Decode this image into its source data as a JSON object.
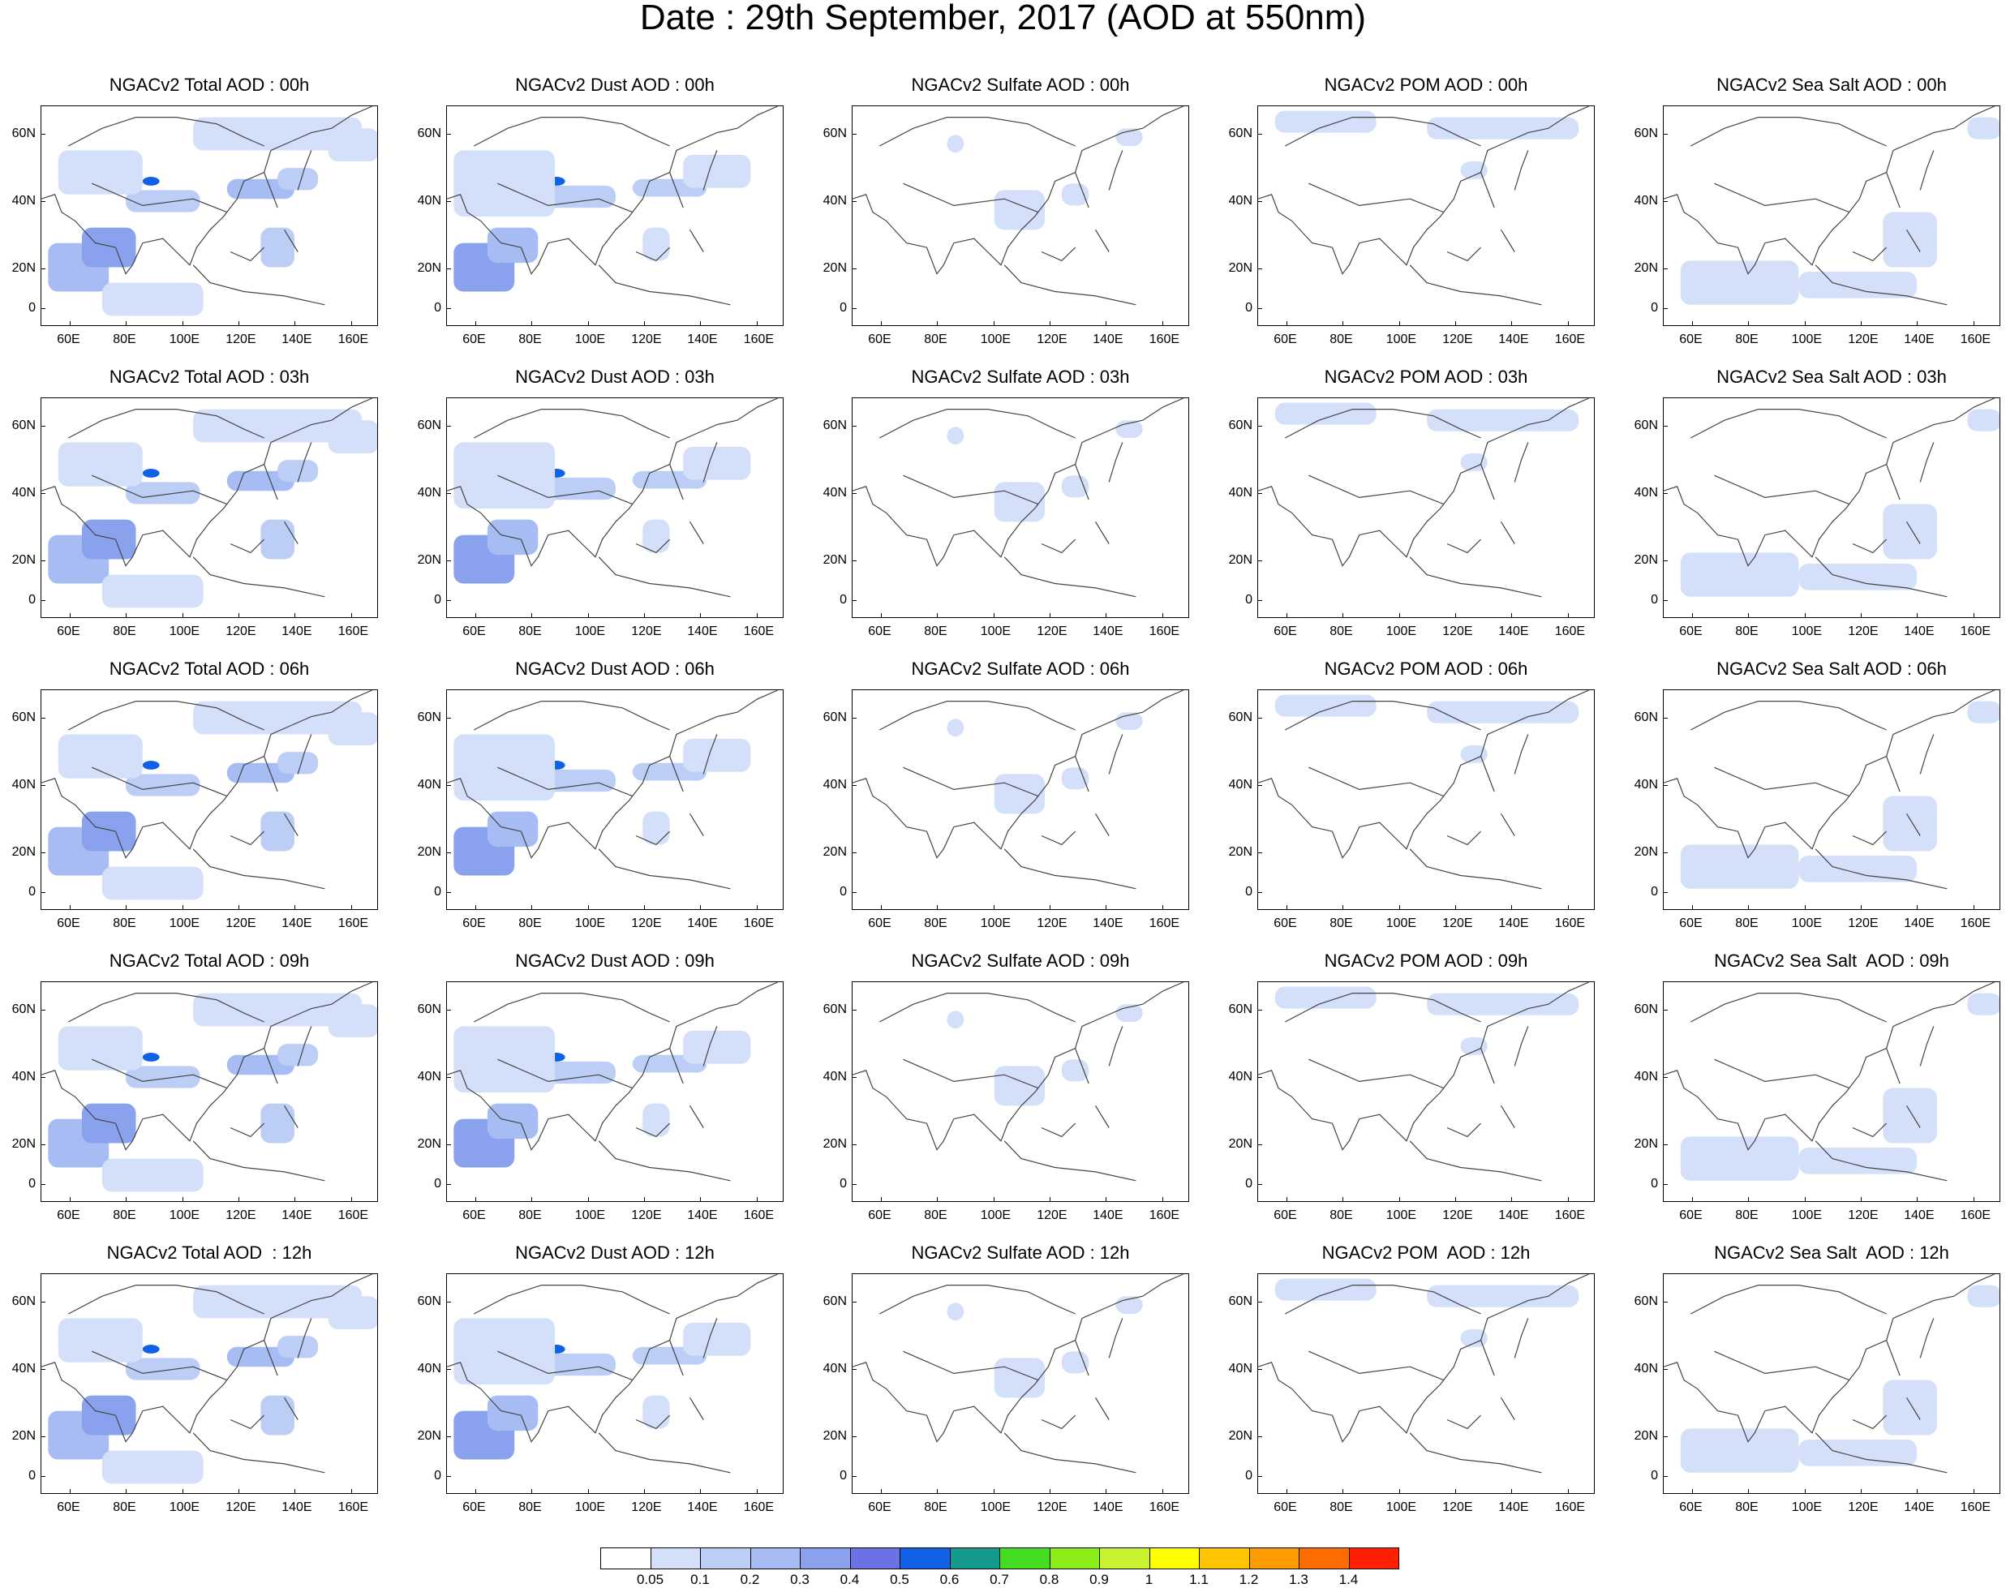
{
  "title": "Date : 29th September, 2017 (AOD at 550nm)",
  "panel_titles": [
    [
      "NGACv2 Total AOD : 00h",
      "NGACv2 Dust AOD : 00h",
      "NGACv2 Sulfate AOD : 00h",
      "NGACv2 POM AOD : 00h",
      "NGACv2 Sea Salt AOD : 00h"
    ],
    [
      "NGACv2 Total AOD : 03h",
      "NGACv2 Dust AOD : 03h",
      "NGACv2 Sulfate AOD : 03h",
      "NGACv2 POM AOD : 03h",
      "NGACv2 Sea Salt AOD : 03h"
    ],
    [
      "NGACv2 Total AOD : 06h",
      "NGACv2 Dust AOD : 06h",
      "NGACv2 Sulfate AOD : 06h",
      "NGACv2 POM AOD : 06h",
      "NGACv2 Sea Salt AOD : 06h"
    ],
    [
      "NGACv2 Total AOD : 09h",
      "NGACv2 Dust AOD : 09h",
      "NGACv2 Sulfate AOD : 09h",
      "NGACv2 POM AOD : 09h",
      "NGACv2 Sea Salt  AOD : 09h"
    ],
    [
      "NGACv2 Total AOD  : 12h",
      "NGACv2 Dust AOD : 12h",
      "NGACv2 Sulfate AOD : 12h",
      "NGACv2 POM  AOD : 12h",
      "NGACv2 Sea Salt  AOD : 12h"
    ]
  ],
  "lon_ticks": [
    "60E",
    "80E",
    "100E",
    "120E",
    "140E",
    "160E"
  ],
  "lat_ticks": [
    "60N",
    "40N",
    "20N",
    "0"
  ],
  "colorbar": {
    "labels": [
      "0.05",
      "0.1",
      "0.2",
      "0.3",
      "0.4",
      "0.5",
      "0.6",
      "0.7",
      "0.8",
      "0.9",
      "1",
      "1.1",
      "1.2",
      "1.3",
      "1.4"
    ],
    "colors": [
      "#ffffff",
      "#d4e0fa",
      "#bccdf6",
      "#a6bcf2",
      "#8aa2ee",
      "#6a72e6",
      "#1060e8",
      "#159b8e",
      "#44dd22",
      "#8cee18",
      "#c8f22e",
      "#ffff00",
      "#ffc400",
      "#ff9c00",
      "#ff6c00",
      "#ff2000"
    ]
  }
}
